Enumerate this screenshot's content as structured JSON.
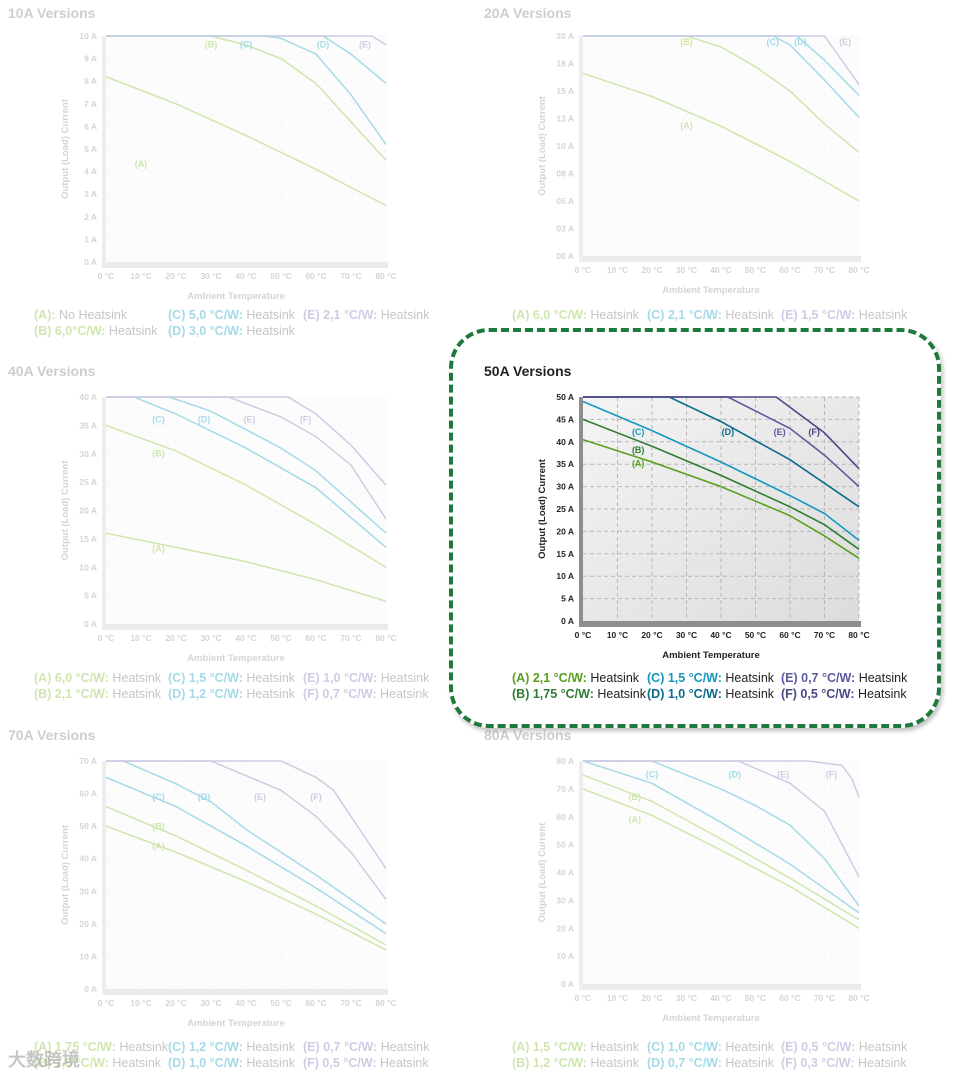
{
  "panels": [
    {
      "id": "p10",
      "title": "10A Versions",
      "active": false,
      "y_ticks": [
        "0 A",
        "1 A",
        "2 A",
        "3 A",
        "4 A",
        "5 A",
        "6 A",
        "7 A",
        "8 A",
        "9 A",
        "10 A"
      ],
      "x_ticks": [
        "0 °C",
        "10 °C",
        "20 °C",
        "30 °C",
        "40 °C",
        "50 °C",
        "60 °C",
        "70 °C",
        "80 °C"
      ],
      "ylabel": "Output (Load) Current",
      "xlabel": "Ambient Temperature",
      "legend": [
        {
          "code": "(A):",
          "text": "No Heatsink",
          "color": "#8dc63f"
        },
        {
          "code": "(B) 6,0°C/W:",
          "text": "Heatsink",
          "color": "#8dc63f"
        },
        {
          "code": "(C) 5,0 °C/W:",
          "text": "Heatsink",
          "color": "#29a9c9"
        },
        {
          "code": "(D) 3,0 °C/W:",
          "text": "Heatsink",
          "color": "#29a9c9"
        },
        {
          "code": "(E) 2,1 °C/W:",
          "text": "Heatsink",
          "color": "#8e86c0"
        }
      ],
      "series_labels": [
        "(A)",
        "(B)",
        "(C)",
        "(D)",
        "(E)"
      ]
    },
    {
      "id": "p20",
      "title": "20A Versions",
      "active": false,
      "y_ticks": [
        "00 A",
        "03 A",
        "05 A",
        "08 A",
        "10 A",
        "13 A",
        "15 A",
        "18 A",
        "20 A"
      ],
      "x_ticks": [
        "0 °C",
        "10 °C",
        "20 °C",
        "30 °C",
        "40 °C",
        "50 °C",
        "60 °C",
        "70 °C",
        "80 °C"
      ],
      "ylabel": "Output (Load) Current",
      "xlabel": "Ambient Temperature",
      "legend": [
        {
          "code": "(A) 6,0 °C/W:",
          "text": "Heatsink",
          "color": "#8dc63f"
        },
        {
          "code": "(C) 2,1 °C/W:",
          "text": "Heatsink",
          "color": "#29a9c9"
        },
        {
          "code": "(E) 1,5 °C/W:",
          "text": "Heatsink",
          "color": "#8e86c0"
        }
      ],
      "series_labels": [
        "(A)",
        "(B)",
        "(C)",
        "(D)",
        "(E)"
      ]
    },
    {
      "id": "p40",
      "title": "40A Versions",
      "active": false,
      "y_ticks": [
        "0 A",
        "5 A",
        "10 A",
        "15 A",
        "20 A",
        "25 A",
        "30 A",
        "35 A",
        "40 A"
      ],
      "x_ticks": [
        "0 °C",
        "10 °C",
        "20 °C",
        "30 °C",
        "40 °C",
        "50 °C",
        "60 °C",
        "70 °C",
        "80 °C"
      ],
      "ylabel": "Output (Load) Current",
      "xlabel": "Ambient Temperature",
      "legend": [
        {
          "code": "(A) 6,0 °C/W:",
          "text": "Heatsink",
          "color": "#8dc63f"
        },
        {
          "code": "(B) 2,1 °C/W:",
          "text": "Heatsink",
          "color": "#8dc63f"
        },
        {
          "code": "(C) 1,5 °C/W:",
          "text": "Heatsink",
          "color": "#29a9c9"
        },
        {
          "code": "(D) 1,2 °C/W:",
          "text": "Heatsink",
          "color": "#29a9c9"
        },
        {
          "code": "(E) 1,0 °C/W:",
          "text": "Heatsink",
          "color": "#8e86c0"
        },
        {
          "code": "(F) 0,7 °C/W:",
          "text": "Heatsink",
          "color": "#8e86c0"
        }
      ],
      "series_labels": [
        "(A)",
        "(B)",
        "(C)",
        "(D)",
        "(E)",
        "(F)"
      ]
    },
    {
      "id": "p50",
      "title": "50A Versions",
      "active": true,
      "y_ticks": [
        "0 A",
        "5 A",
        "10 A",
        "15 A",
        "20 A",
        "25 A",
        "30 A",
        "35 A",
        "40 A",
        "45 A",
        "50 A"
      ],
      "x_ticks": [
        "0 °C",
        "10 °C",
        "20 °C",
        "30 °C",
        "40 °C",
        "50 °C",
        "60 °C",
        "70 °C",
        "80 °C"
      ],
      "ylabel": "Output (Load) Current",
      "xlabel": "Ambient Temperature",
      "legend": [
        {
          "code": "(A) 2,1 °C/W:",
          "text": "Heatsink",
          "color": "#5a9e1e"
        },
        {
          "code": "(B) 1,75 °C/W:",
          "text": "Heatsink",
          "color": "#2e7d32"
        },
        {
          "code": "(C) 1,5 °C/W:",
          "text": "Heatsink",
          "color": "#1597bd"
        },
        {
          "code": "(D) 1,0 °C/W:",
          "text": "Heatsink",
          "color": "#0b6b8c"
        },
        {
          "code": "(E) 0,7 °C/W:",
          "text": "Heatsink",
          "color": "#5c5a9e"
        },
        {
          "code": "(F) 0,5 °C/W:",
          "text": "Heatsink",
          "color": "#4a4785"
        }
      ],
      "series_labels": [
        "(A)",
        "(B)",
        "(C)",
        "(D)",
        "(E)",
        "(F)"
      ]
    },
    {
      "id": "p70",
      "title": "70A Versions",
      "active": false,
      "y_ticks": [
        "0 A",
        "10 A",
        "20 A",
        "30 A",
        "40 A",
        "50 A",
        "60 A",
        "70 A"
      ],
      "x_ticks": [
        "0 °C",
        "10 °C",
        "20 °C",
        "30 °C",
        "40 °C",
        "50 °C",
        "60 °C",
        "70 °C",
        "80 °C"
      ],
      "ylabel": "Output (Load) Current",
      "xlabel": "Ambient Temperature",
      "legend": [
        {
          "code": "(A) 1,75 °C/W:",
          "text": "Heatsink",
          "color": "#8dc63f"
        },
        {
          "code": "(B) 1,5 °C/W:",
          "text": "Heatsink",
          "color": "#8dc63f"
        },
        {
          "code": "(C) 1,2 °C/W:",
          "text": "Heatsink",
          "color": "#29a9c9"
        },
        {
          "code": "(D) 1,0 °C/W:",
          "text": "Heatsink",
          "color": "#29a9c9"
        },
        {
          "code": "(E) 0,7 °C/W:",
          "text": "Heatsink",
          "color": "#8e86c0"
        },
        {
          "code": "(F) 0,5 °C/W:",
          "text": "Heatsink",
          "color": "#8e86c0"
        }
      ],
      "series_labels": [
        "(A)",
        "(B)",
        "(C)",
        "(D)",
        "(E)",
        "(F)"
      ]
    },
    {
      "id": "p80",
      "title": "80A Versions",
      "active": false,
      "y_ticks": [
        "0 A",
        "10 A",
        "20 A",
        "30 A",
        "40 A",
        "50 A",
        "60 A",
        "70 A",
        "80 A"
      ],
      "x_ticks": [
        "0 °C",
        "10 °C",
        "20 °C",
        "30 °C",
        "40 °C",
        "50 °C",
        "60 °C",
        "70 °C",
        "80 °C"
      ],
      "ylabel": "Output (Load) Current",
      "xlabel": "Ambient Temperature",
      "legend": [
        {
          "code": "(A) 1,5 °C/W:",
          "text": "Heatsink",
          "color": "#8dc63f"
        },
        {
          "code": "(B) 1,2 °C/W:",
          "text": "Heatsink",
          "color": "#8dc63f"
        },
        {
          "code": "(C) 1,0 °C/W:",
          "text": "Heatsink",
          "color": "#29a9c9"
        },
        {
          "code": "(D) 0,7 °C/W:",
          "text": "Heatsink",
          "color": "#29a9c9"
        },
        {
          "code": "(E) 0,5 °C/W:",
          "text": "Heatsink",
          "color": "#8e86c0"
        },
        {
          "code": "(F) 0,3 °C/W:",
          "text": "Heatsink",
          "color": "#8e86c0"
        }
      ],
      "series_labels": [
        "(A)",
        "(B)",
        "(C)",
        "(D)",
        "(E)",
        "(F)"
      ]
    }
  ],
  "watermark": "大数跨境",
  "chart_data": [
    {
      "type": "line",
      "title": "10A Versions",
      "xlabel": "Ambient Temperature",
      "ylabel": "Output (Load) Current",
      "xlim": [
        0,
        80
      ],
      "ylim": [
        0,
        10
      ],
      "series": [
        {
          "name": "(A)",
          "color": "#8dc63f",
          "x": [
            0,
            20,
            40,
            60,
            80
          ],
          "values": [
            8.2,
            7.0,
            5.6,
            4.1,
            2.5
          ]
        },
        {
          "name": "(B)",
          "color": "#8dc63f",
          "x": [
            0,
            30,
            40,
            50,
            60,
            70,
            80
          ],
          "values": [
            10,
            10,
            9.6,
            9.0,
            7.9,
            6.2,
            4.5
          ]
        },
        {
          "name": "(C)",
          "color": "#29a9c9",
          "x": [
            0,
            45,
            50,
            60,
            70,
            80
          ],
          "values": [
            10,
            10,
            9.9,
            9.2,
            7.4,
            5.2
          ]
        },
        {
          "name": "(D)",
          "color": "#29a9c9",
          "x": [
            0,
            62,
            70,
            80
          ],
          "values": [
            10,
            10,
            9.2,
            7.9
          ]
        },
        {
          "name": "(E)",
          "color": "#8e86c0",
          "x": [
            0,
            76,
            80
          ],
          "values": [
            10,
            10,
            9.6
          ]
        }
      ]
    },
    {
      "type": "line",
      "title": "20A Versions",
      "xlabel": "Ambient Temperature",
      "ylabel": "Output (Load) Current",
      "xlim": [
        0,
        80
      ],
      "ylim": [
        0,
        20
      ],
      "series": [
        {
          "name": "(A)",
          "color": "#8dc63f",
          "x": [
            0,
            20,
            40,
            60,
            80
          ],
          "values": [
            16.6,
            14.5,
            11.8,
            8.6,
            5.0
          ]
        },
        {
          "name": "(B)",
          "color": "#8dc63f",
          "x": [
            0,
            30,
            40,
            50,
            60,
            70,
            80
          ],
          "values": [
            20,
            20,
            19.0,
            17.2,
            15.0,
            12.0,
            9.4
          ]
        },
        {
          "name": "(C)",
          "color": "#29a9c9",
          "x": [
            0,
            55,
            60,
            70,
            80
          ],
          "values": [
            20,
            20,
            19.2,
            16.0,
            12.6
          ]
        },
        {
          "name": "(D)",
          "color": "#29a9c9",
          "x": [
            0,
            62,
            70,
            80
          ],
          "values": [
            20,
            20,
            17.8,
            14.6
          ]
        },
        {
          "name": "(E)",
          "color": "#8e86c0",
          "x": [
            0,
            70,
            80
          ],
          "values": [
            20,
            20,
            15.6
          ]
        }
      ]
    },
    {
      "type": "line",
      "title": "40A Versions",
      "xlabel": "Ambient Temperature",
      "ylabel": "Output (Load) Current",
      "xlim": [
        0,
        80
      ],
      "ylim": [
        0,
        40
      ],
      "series": [
        {
          "name": "(A)",
          "color": "#8dc63f",
          "x": [
            0,
            20,
            40,
            60,
            80
          ],
          "values": [
            16.0,
            13.5,
            11.0,
            7.8,
            4.0
          ]
        },
        {
          "name": "(B)",
          "color": "#8dc63f",
          "x": [
            0,
            20,
            40,
            60,
            80
          ],
          "values": [
            35.0,
            30.5,
            24.5,
            17.5,
            10.0
          ]
        },
        {
          "name": "(C)",
          "color": "#29a9c9",
          "x": [
            0,
            8,
            20,
            40,
            60,
            80
          ],
          "values": [
            40,
            40,
            37.0,
            31.0,
            24.0,
            13.5
          ]
        },
        {
          "name": "(D)",
          "color": "#29a9c9",
          "x": [
            0,
            18,
            30,
            50,
            60,
            80
          ],
          "values": [
            40,
            40,
            37.5,
            31.0,
            27.0,
            16.0
          ]
        },
        {
          "name": "(E)",
          "color": "#8e86c0",
          "x": [
            0,
            35,
            50,
            60,
            70,
            80
          ],
          "values": [
            40,
            40,
            36.5,
            33.0,
            28.0,
            18.5
          ]
        },
        {
          "name": "(F)",
          "color": "#8e86c0",
          "x": [
            0,
            52,
            60,
            70,
            80
          ],
          "values": [
            40,
            40,
            37.0,
            31.5,
            24.5
          ]
        }
      ]
    },
    {
      "type": "line",
      "title": "50A Versions",
      "xlabel": "Ambient Temperature",
      "ylabel": "Output (Load) Current",
      "xlim": [
        0,
        80
      ],
      "ylim": [
        0,
        50
      ],
      "series": [
        {
          "name": "(A)",
          "color": "#5a9e1e",
          "x": [
            0,
            20,
            40,
            60,
            70,
            80
          ],
          "values": [
            40.5,
            35.5,
            30.0,
            23.5,
            19.0,
            14.0
          ]
        },
        {
          "name": "(B)",
          "color": "#2e7d32",
          "x": [
            0,
            20,
            40,
            60,
            70,
            80
          ],
          "values": [
            45.0,
            39.0,
            32.5,
            25.5,
            21.5,
            16.0
          ]
        },
        {
          "name": "(C)",
          "color": "#1597bd",
          "x": [
            0,
            20,
            40,
            60,
            70,
            80
          ],
          "values": [
            49.0,
            42.5,
            35.5,
            28.0,
            24.0,
            18.0
          ]
        },
        {
          "name": "(D)",
          "color": "#0b6b8c",
          "x": [
            0,
            25,
            40,
            60,
            80
          ],
          "values": [
            50,
            50,
            44.5,
            36.0,
            25.5
          ]
        },
        {
          "name": "(E)",
          "color": "#5c5a9e",
          "x": [
            0,
            42,
            60,
            70,
            80
          ],
          "values": [
            50,
            50,
            43.0,
            37.0,
            30.0
          ]
        },
        {
          "name": "(F)",
          "color": "#4a4785",
          "x": [
            0,
            56,
            70,
            80
          ],
          "values": [
            50,
            50,
            42.0,
            34.0
          ]
        }
      ]
    },
    {
      "type": "line",
      "title": "70A Versions",
      "xlabel": "Ambient Temperature",
      "ylabel": "Output (Load) Current",
      "xlim": [
        0,
        80
      ],
      "ylim": [
        0,
        70
      ],
      "series": [
        {
          "name": "(A)",
          "color": "#8dc63f",
          "x": [
            0,
            20,
            40,
            60,
            80
          ],
          "values": [
            50.0,
            42.0,
            33.0,
            23.0,
            12.0
          ]
        },
        {
          "name": "(B)",
          "color": "#8dc63f",
          "x": [
            0,
            20,
            40,
            60,
            80
          ],
          "values": [
            56.0,
            47.0,
            36.5,
            25.5,
            13.5
          ]
        },
        {
          "name": "(C)",
          "color": "#29a9c9",
          "x": [
            0,
            20,
            40,
            60,
            80
          ],
          "values": [
            65.0,
            56.0,
            44.0,
            31.0,
            17.0
          ]
        },
        {
          "name": "(D)",
          "color": "#29a9c9",
          "x": [
            0,
            5,
            20,
            30,
            40,
            60,
            80
          ],
          "values": [
            70,
            70,
            63.0,
            57.5,
            49.0,
            35.0,
            20.0
          ]
        },
        {
          "name": "(E)",
          "color": "#8e86c0",
          "x": [
            0,
            30,
            50,
            60,
            70,
            80
          ],
          "values": [
            70,
            70,
            61.0,
            53.0,
            42.0,
            27.5
          ]
        },
        {
          "name": "(F)",
          "color": "#8e86c0",
          "x": [
            0,
            50,
            60,
            65,
            70,
            80
          ],
          "values": [
            70,
            70,
            65.0,
            61.0,
            53.0,
            37.0
          ]
        }
      ]
    },
    {
      "type": "line",
      "title": "80A Versions",
      "xlabel": "Ambient Temperature",
      "ylabel": "Output (Load) Current",
      "xlim": [
        0,
        80
      ],
      "ylim": [
        0,
        80
      ],
      "series": [
        {
          "name": "(A)",
          "color": "#8dc63f",
          "x": [
            0,
            20,
            40,
            60,
            80
          ],
          "values": [
            70.0,
            60.5,
            48.0,
            35.0,
            20.0
          ]
        },
        {
          "name": "(B)",
          "color": "#8dc63f",
          "x": [
            0,
            20,
            40,
            60,
            80
          ],
          "values": [
            75.0,
            65.5,
            52.0,
            38.0,
            23.0
          ]
        },
        {
          "name": "(C)",
          "color": "#29a9c9",
          "x": [
            0,
            20,
            40,
            60,
            80
          ],
          "values": [
            80,
            72.0,
            58.0,
            43.0,
            25.5
          ]
        },
        {
          "name": "(D)",
          "color": "#29a9c9",
          "x": [
            0,
            20,
            40,
            50,
            60,
            70,
            80
          ],
          "values": [
            80,
            80,
            70.0,
            64.0,
            57.0,
            45.0,
            28.0
          ]
        },
        {
          "name": "(E)",
          "color": "#8e86c0",
          "x": [
            0,
            45,
            60,
            70,
            80
          ],
          "values": [
            80,
            80,
            72.0,
            62.0,
            38.5
          ]
        },
        {
          "name": "(F)",
          "color": "#8e86c0",
          "x": [
            0,
            65,
            75,
            78,
            80
          ],
          "values": [
            80,
            80,
            78.5,
            73.5,
            67.0
          ]
        }
      ]
    }
  ]
}
